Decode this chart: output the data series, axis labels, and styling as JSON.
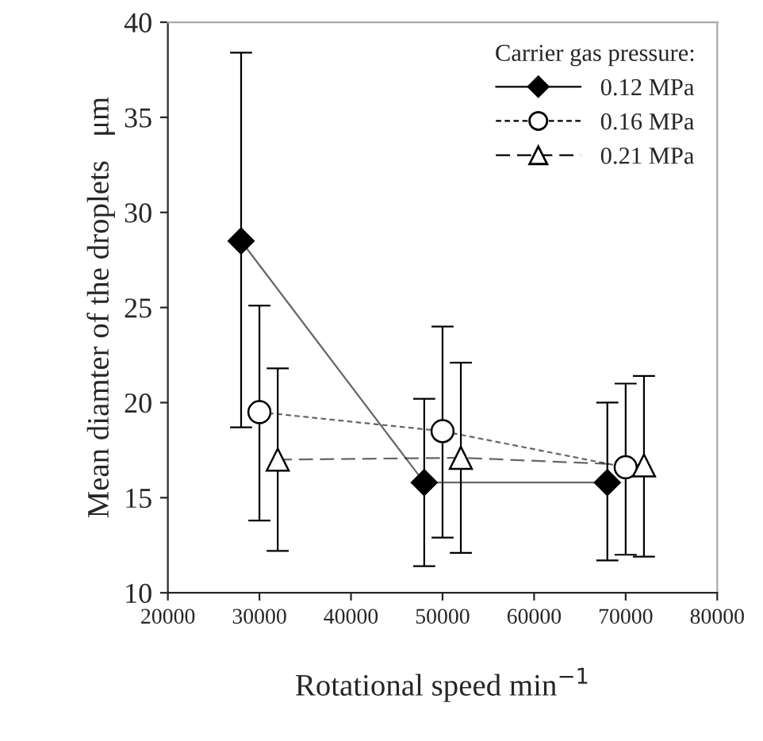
{
  "chart_data": {
    "type": "line",
    "xlabel": "Rotational speed min$^{−1}$",
    "ylabel": "Mean diamter of the droplets   μm",
    "legend_title": "Carrier gas pressure:",
    "xlim": [
      20000,
      80000
    ],
    "xticks": [
      20000,
      30000,
      40000,
      50000,
      60000,
      70000,
      80000
    ],
    "ylim": [
      10,
      40
    ],
    "yticks": [
      10,
      15,
      20,
      25,
      30,
      35,
      40
    ],
    "grid": false,
    "legend": "top right",
    "series": [
      {
        "name": "0.12 MPa",
        "color": "#000000",
        "marker": "diamond",
        "line_style": "solid",
        "x": [
          28000,
          48000,
          68000
        ],
        "values": [
          28.5,
          15.8,
          15.8
        ],
        "errors": [
          [
            18.7,
            38.4
          ],
          [
            11.4,
            20.2
          ],
          [
            11.7,
            20.0
          ]
        ]
      },
      {
        "name": "0.16 MPa",
        "color": "#000000",
        "marker": "circle",
        "line_style": "dashed",
        "x": [
          30000,
          50000,
          70000
        ],
        "values": [
          19.5,
          18.5,
          16.6
        ],
        "errors": [
          [
            13.8,
            25.1
          ],
          [
            12.9,
            24.0
          ],
          [
            12.0,
            21.0
          ]
        ]
      },
      {
        "name": "0.21 MPa",
        "color": "#000000",
        "marker": "triangle",
        "line_style": "dashdot",
        "x": [
          32000,
          52000,
          72000
        ],
        "values": [
          17.0,
          17.1,
          16.7
        ],
        "errors": [
          [
            12.2,
            21.8
          ],
          [
            12.1,
            22.1
          ],
          [
            11.9,
            21.4
          ]
        ]
      }
    ]
  }
}
